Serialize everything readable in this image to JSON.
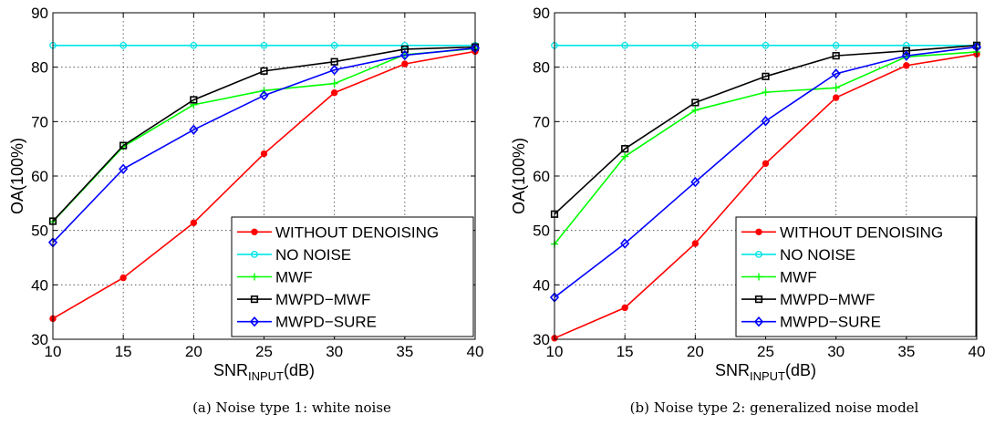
{
  "chart_data": [
    {
      "type": "line",
      "caption": "(a) Noise type 1: white noise",
      "xlabel": "SNR",
      "xlabel_sub": "INPUT",
      "xlabel_unit": "(dB)",
      "ylabel": "OA(100%)",
      "x": [
        10,
        15,
        20,
        25,
        30,
        35,
        40
      ],
      "xlim": [
        10,
        40
      ],
      "ylim": [
        30,
        90
      ],
      "xticks": [
        10,
        15,
        20,
        25,
        30,
        35,
        40
      ],
      "yticks": [
        30,
        40,
        50,
        60,
        70,
        80,
        90
      ],
      "grid": true,
      "legend_position": "bottom-right",
      "series": [
        {
          "name": "WITHOUT DENOISING",
          "color": "#ff0000",
          "marker": "dot",
          "values": [
            33.8,
            41.3,
            51.4,
            64.1,
            75.3,
            80.6,
            82.9
          ]
        },
        {
          "name": "NO NOISE",
          "color": "#00e5e5",
          "marker": "circle",
          "values": [
            84,
            84,
            84,
            84,
            84,
            84,
            84
          ]
        },
        {
          "name": "MWF",
          "color": "#00ff00",
          "marker": "plus",
          "values": [
            51.6,
            65.4,
            73.1,
            75.7,
            77.0,
            82.3,
            83.4
          ]
        },
        {
          "name": "MWPD−MWF",
          "color": "#000000",
          "marker": "square",
          "values": [
            51.7,
            65.6,
            74.0,
            79.3,
            81.0,
            83.3,
            83.7
          ]
        },
        {
          "name": "MWPD−SURE",
          "color": "#0000ff",
          "marker": "diamond",
          "values": [
            47.8,
            61.3,
            68.5,
            74.8,
            79.5,
            82.2,
            83.5
          ]
        }
      ]
    },
    {
      "type": "line",
      "caption": "(b) Noise type 2: generalized noise model",
      "xlabel": "SNR",
      "xlabel_sub": "INPUT",
      "xlabel_unit": "(dB)",
      "ylabel": "OA(100%)",
      "x": [
        10,
        15,
        20,
        25,
        30,
        35,
        40
      ],
      "xlim": [
        10,
        40
      ],
      "ylim": [
        30,
        90
      ],
      "xticks": [
        10,
        15,
        20,
        25,
        30,
        35,
        40
      ],
      "yticks": [
        30,
        40,
        50,
        60,
        70,
        80,
        90
      ],
      "grid": true,
      "legend_position": "bottom-right",
      "series": [
        {
          "name": "WITHOUT DENOISING",
          "color": "#ff0000",
          "marker": "dot",
          "values": [
            30.2,
            35.8,
            47.6,
            62.3,
            74.4,
            80.3,
            82.4
          ]
        },
        {
          "name": "NO NOISE",
          "color": "#00e5e5",
          "marker": "circle",
          "values": [
            84,
            84,
            84,
            84,
            84,
            84,
            84
          ]
        },
        {
          "name": "MWF",
          "color": "#00ff00",
          "marker": "plus",
          "values": [
            47.5,
            63.6,
            72.1,
            75.4,
            76.2,
            81.9,
            82.8
          ]
        },
        {
          "name": "MWPD−MWF",
          "color": "#000000",
          "marker": "square",
          "values": [
            53.0,
            65.0,
            73.5,
            78.3,
            82.1,
            83.0,
            84.0
          ]
        },
        {
          "name": "MWPD−SURE",
          "color": "#0000ff",
          "marker": "diamond",
          "values": [
            37.7,
            47.6,
            58.9,
            70.1,
            78.8,
            82.1,
            83.7
          ]
        }
      ]
    }
  ]
}
